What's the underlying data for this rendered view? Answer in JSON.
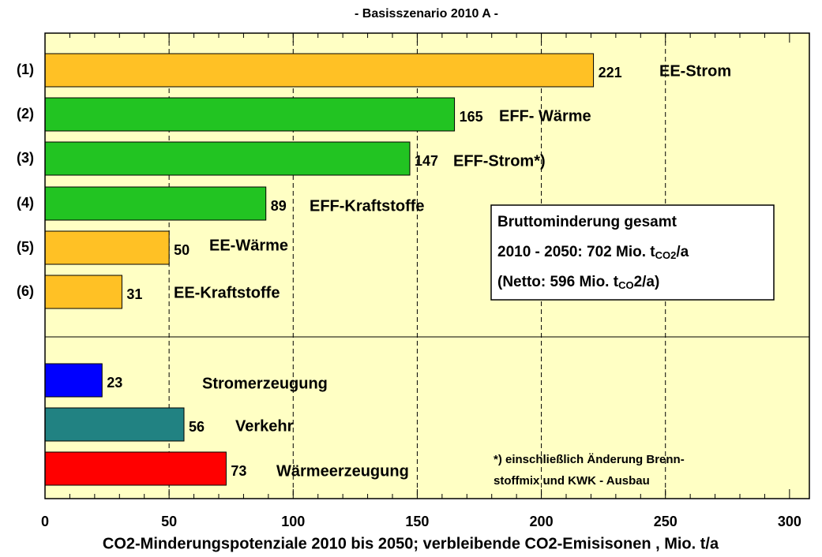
{
  "chart_data": {
    "type": "bar",
    "orientation": "horizontal",
    "title": "- Basisszenario 2010 A -",
    "x_label": "CO2-Minderungspotenziale 2010 bis 2050; verbleibende CO2-Emisisonen , Mio. t/a",
    "categories": [
      "(1)",
      "(2)",
      "(3)",
      "(4)",
      "(5)",
      "(6)",
      null,
      null,
      null
    ],
    "bar_labels": [
      "EE-Strom",
      "EFF- Wärme",
      "EFF-Strom*)",
      "EFF-Kraftstoffe",
      "EE-Wärme",
      "EE-Kraftstoffe",
      "Stromerzeugung",
      "Verkehr",
      "Wärmeerzeugung"
    ],
    "values": [
      221,
      165,
      147,
      89,
      50,
      31,
      23,
      56,
      73
    ],
    "colors": [
      "#ffc125",
      "#22c422",
      "#22c422",
      "#22c422",
      "#ffc125",
      "#ffc125",
      "#0000ff",
      "#218282",
      "#ff0000"
    ],
    "xlim": [
      0,
      308
    ],
    "xticks": [
      0,
      50,
      100,
      150,
      200,
      250,
      300
    ],
    "xminor_ticks": [
      10,
      20,
      30,
      40,
      60,
      70,
      80,
      90,
      110,
      120,
      130,
      140,
      160,
      170,
      180,
      190,
      210,
      220,
      230,
      240,
      260,
      270,
      280,
      290
    ],
    "grid": true,
    "background": "#ffffc4",
    "box": {
      "lines": [
        [
          "Bruttominderung gesamt"
        ],
        [
          "2010 - 2050: 702 Mio. t",
          "CO2",
          "/a"
        ],
        [
          "(Netto: 596 Mio. t",
          "CO",
          "2/a)"
        ]
      ]
    },
    "footnote": [
      "*) einschließlich Änderung Brenn-",
      "stoffmix und KWK - Ausbau"
    ]
  }
}
